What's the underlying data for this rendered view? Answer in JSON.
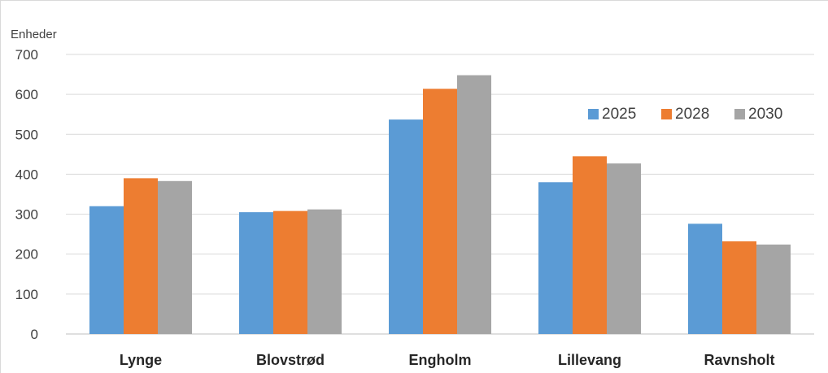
{
  "chart_data": {
    "type": "bar",
    "ylabel": "Enheder",
    "xlabel": "",
    "title": "",
    "categories": [
      "Lynge",
      "Blovstrød",
      "Engholm",
      "Lillevang",
      "Ravnsholt"
    ],
    "series": [
      {
        "name": "2025",
        "color": "#5b9bd5",
        "values": [
          320,
          305,
          537,
          380,
          276
        ]
      },
      {
        "name": "2028",
        "color": "#ed7d31",
        "values": [
          390,
          308,
          614,
          445,
          232
        ]
      },
      {
        "name": "2030",
        "color": "#a5a5a5",
        "values": [
          383,
          312,
          648,
          427,
          224
        ]
      }
    ],
    "ylim": [
      0,
      700
    ],
    "yticks": [
      "0",
      "100",
      "200",
      "300",
      "400",
      "500",
      "600",
      "700"
    ],
    "grid": true,
    "legend_position": "top-right"
  }
}
